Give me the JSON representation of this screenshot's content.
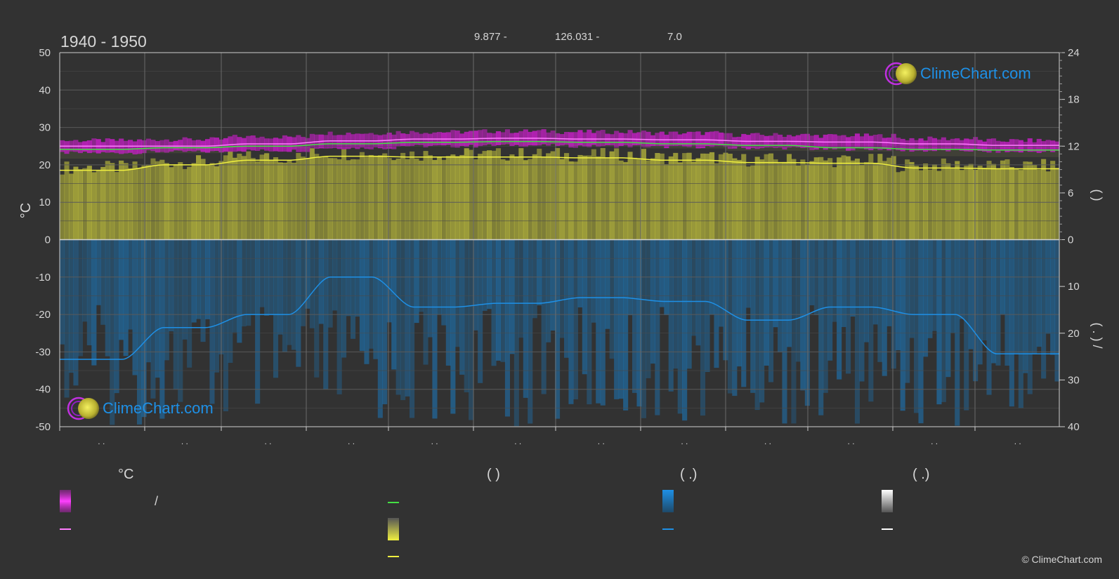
{
  "header": {
    "title": "1940 - 1950",
    "lat_text": "9.877 -",
    "lon_text": "126.031 -",
    "elev_text": "7.0"
  },
  "colors": {
    "background": "#323232",
    "grid": "#5a5a5a",
    "text": "#d6d6d6",
    "temp_band": "#c81ec8",
    "temp_mean": "#ff7cff",
    "daylight": "#44e044",
    "sunshine_fill": "#b8b83c",
    "sunshine_line": "#f0f040",
    "rain_fill": "#1e6ea8",
    "rain_line": "#1e90e6",
    "snow_line": "#ffffff",
    "logo_blue": "#1e90e6"
  },
  "chart_data": {
    "type": "area",
    "months": 12,
    "month_tick_labels": [
      ". .",
      ". .",
      ". .",
      ". .",
      ". .",
      ". .",
      ". .",
      ". .",
      ". .",
      ". .",
      ". .",
      ". ."
    ],
    "left_axis": {
      "label": "°C",
      "ticks": [
        "50",
        "40",
        "30",
        "20",
        "10",
        "0",
        "-10",
        "-20",
        "-30",
        "-40",
        "-50"
      ],
      "ylim": [
        -50,
        50
      ]
    },
    "right_axis_upper": {
      "label": "(   )",
      "ticks": [
        "24",
        "18",
        "12",
        "6",
        "0"
      ],
      "ylim": [
        0,
        24
      ]
    },
    "right_axis_lower": {
      "label": "(  .  )      /",
      "ticks": [
        "10",
        "20",
        "30",
        "40"
      ],
      "ylim": [
        0,
        40
      ]
    },
    "series": [
      {
        "key": "temp_max",
        "values": [
          26.5,
          26.8,
          27.5,
          28.5,
          28.8,
          29.0,
          28.8,
          28.5,
          28.0,
          27.8,
          27.0,
          26.5
        ]
      },
      {
        "key": "temp_min",
        "values": [
          23.2,
          23.5,
          23.8,
          24.5,
          25.0,
          25.2,
          25.0,
          24.8,
          24.5,
          24.2,
          23.8,
          23.5
        ]
      },
      {
        "key": "temp_mean",
        "values": [
          25.0,
          25.0,
          25.6,
          26.4,
          26.9,
          27.1,
          26.9,
          26.7,
          26.3,
          26.1,
          25.6,
          25.2
        ]
      },
      {
        "key": "daylight_hours",
        "values": [
          11.6,
          11.8,
          12.0,
          12.3,
          12.5,
          12.6,
          12.5,
          12.3,
          12.1,
          11.8,
          11.6,
          11.5
        ]
      },
      {
        "key": "sunshine_hours",
        "values": [
          8.9,
          9.6,
          10.2,
          10.7,
          10.6,
          10.6,
          10.5,
          10.2,
          9.9,
          9.8,
          9.2,
          9.1
        ]
      },
      {
        "key": "precipitation_mm",
        "values": [
          640,
          470,
          400,
          200,
          360,
          340,
          310,
          330,
          430,
          360,
          400,
          610
        ]
      }
    ],
    "grid": true
  },
  "legend": {
    "col1": {
      "heading": "°C",
      "item1_text": "/",
      "item2_text": ""
    },
    "col2": {
      "heading": "(          )",
      "item1_text": "",
      "item2_text": "",
      "item3_text": ""
    },
    "col3": {
      "heading": "(   .)",
      "item1_text": "",
      "item2_text": ""
    },
    "col4": {
      "heading": "(   .)",
      "item1_text": "",
      "item2_text": ""
    }
  },
  "logo": {
    "text": "ClimeChart.com"
  },
  "copyright": "© ClimeChart.com"
}
